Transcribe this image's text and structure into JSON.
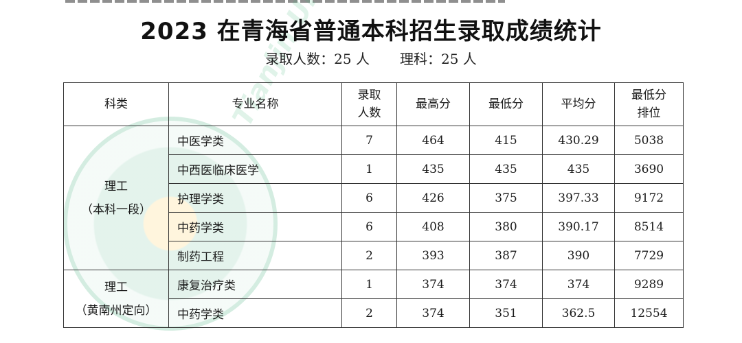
{
  "title": "2023 在青海省普通本科招生录取成绩统计",
  "subtitle": {
    "total": "录取人数：25 人",
    "science": "理科：25 人"
  },
  "watermark": "Tianjin University",
  "table": {
    "headers": [
      "科类",
      "专业名称",
      "录取人数",
      "最高分",
      "最低分",
      "平均分",
      "最低分排位"
    ],
    "groups": [
      {
        "category": "理工",
        "sub": "（本科一段）",
        "rows": [
          [
            "中医学类",
            "7",
            "464",
            "415",
            "430.29",
            "5038"
          ],
          [
            "中西医临床医学",
            "1",
            "435",
            "435",
            "435",
            "3690"
          ],
          [
            "护理学类",
            "6",
            "426",
            "375",
            "397.33",
            "9172"
          ],
          [
            "中药学类",
            "6",
            "408",
            "380",
            "390.17",
            "8514"
          ],
          [
            "制药工程",
            "2",
            "393",
            "387",
            "390",
            "7729"
          ]
        ]
      },
      {
        "category": "理工",
        "sub": "（黄南州定向）",
        "rows": [
          [
            "康复治疗类",
            "1",
            "374",
            "374",
            "374",
            "9289"
          ],
          [
            "中药学类",
            "2",
            "374",
            "351",
            "362.5",
            "12554"
          ]
        ]
      }
    ]
  }
}
